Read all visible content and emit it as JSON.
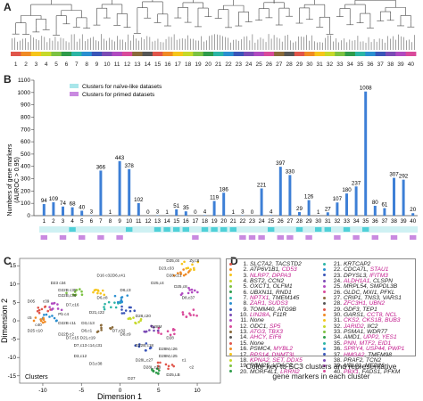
{
  "panels": {
    "a": "A",
    "b": "B",
    "c": "C",
    "d": "D"
  },
  "colors": {
    "bar": "#3d7fd6",
    "naive": "#a8e6ea",
    "primed": "#c98ae0",
    "pink_gene": "#c2188c"
  },
  "cluster_palette": [
    "#e0554a",
    "#f08a24",
    "#f6c51a",
    "#c6d92a",
    "#7cc242",
    "#2e9b4a",
    "#2bb5a5",
    "#2a8fd0",
    "#3a55b8",
    "#7b4bb5",
    "#b04ac0",
    "#d94a9a",
    "#8a6a3a",
    "#555555"
  ],
  "dendrogram": {
    "numbers": [
      "1",
      "2",
      "3",
      "4",
      "5",
      "6",
      "7",
      "8",
      "9",
      "10",
      "11",
      "12",
      "13",
      "14",
      "15",
      "16",
      "17",
      "18",
      "19",
      "20",
      "21",
      "22",
      "23",
      "24",
      "25",
      "26",
      "27",
      "28",
      "29",
      "30",
      "31",
      "32",
      "33",
      "34",
      "35",
      "36",
      "37",
      "38",
      "39",
      "40"
    ]
  },
  "legend_b": {
    "naive": "Clusters for naïve-like datasets",
    "primed": "Clusters for primed datasets"
  },
  "chart_data": {
    "type": "bar",
    "ylabel": "Numbers of gene markers (AUROC > 0.95)",
    "ylabel_line1": "Numbers of gene markers",
    "ylabel_line2": "(AUROC > 0.95)",
    "ylim": [
      0,
      1100
    ],
    "yticks": [
      "0",
      "100",
      "200",
      "300",
      "400",
      "500",
      "600",
      "700",
      "800",
      "900",
      "1000",
      "1100"
    ],
    "categories": [
      "1",
      "2",
      "3",
      "4",
      "5",
      "6",
      "7",
      "8",
      "9",
      "10",
      "11",
      "12",
      "13",
      "14",
      "15",
      "16",
      "17",
      "18",
      "19",
      "20",
      "21",
      "22",
      "23",
      "24",
      "25",
      "26",
      "27",
      "28",
      "29",
      "30",
      "31",
      "32",
      "33",
      "34",
      "35",
      "36",
      "37",
      "38",
      "39",
      "40"
    ],
    "values": [
      94,
      109,
      74,
      68,
      40,
      3,
      366,
      1,
      443,
      378,
      102,
      0,
      3,
      1,
      51,
      35,
      0,
      4,
      119,
      186,
      1,
      3,
      0,
      221,
      4,
      397,
      330,
      29,
      126,
      1,
      27,
      107,
      180,
      237,
      1008,
      80,
      61,
      307,
      292,
      20
    ],
    "labels": [
      "94",
      "109",
      "74",
      "68",
      "40",
      "3",
      "366",
      "1",
      "443",
      "378",
      "102",
      "0",
      "3",
      "1",
      "51",
      "35",
      "0",
      "4",
      "119",
      "186",
      "1",
      "3",
      "0",
      "221",
      "4",
      "397",
      "330",
      "29",
      "126",
      "1",
      "27",
      "107",
      "180",
      "237",
      "1008",
      "80",
      "61",
      "307",
      "292",
      "20"
    ],
    "naive_clusters": [
      1,
      2,
      3,
      4,
      5,
      6,
      7,
      8,
      9,
      10,
      11,
      12,
      13,
      14,
      15,
      16,
      17,
      18,
      19,
      20,
      21,
      22,
      23,
      24,
      25,
      26,
      27,
      28,
      29,
      30,
      31,
      32,
      33,
      34,
      35,
      36,
      37,
      38,
      39,
      40
    ],
    "naive_marked": [
      4,
      10,
      13,
      14,
      15,
      16,
      18,
      19,
      20,
      21,
      25,
      28,
      30,
      31,
      33,
      35
    ],
    "primed_marked": [
      1,
      3,
      5,
      7,
      9,
      17,
      22,
      23,
      24,
      26,
      27,
      29,
      32,
      34,
      36,
      38,
      40
    ],
    "grid": false
  },
  "panel_c": {
    "xlabel": "Dimension 1",
    "ylabel": "Dimension 2",
    "legend_title": "Clusters",
    "xticks": [
      "-10",
      "-5",
      "0",
      "5",
      "10"
    ],
    "yticks": [
      "-15",
      "-10",
      "-5",
      "0",
      "5",
      "10",
      "15"
    ],
    "annotations": [
      "D05",
      "c39",
      "Pb c4",
      "c5",
      "c40",
      "D25 c10",
      "D16 c32",
      "D23 c34",
      "D22B c35",
      "D22B,c36",
      "D6,c8",
      "D6,c3",
      "D7,c16",
      "D21,c22",
      "D22B c11",
      "D22B c2",
      "D7,c15 D21,c19",
      "D28,c20",
      "D28M",
      "D28",
      "D6,c41",
      "D3,c13",
      "D8,c1",
      "D7,c13 c14,c31",
      "D3,c12",
      "D7,c32",
      "D8,c9",
      "D22B,c18",
      "D3,c38",
      "D28M,c26",
      "D28M,c25",
      "D28L,c27",
      "D28L,c28",
      "D25,c8",
      "D28,c21",
      "D23,c33",
      "Zy,c8",
      "D25,c6",
      "D25,c4",
      "D8,c37",
      "c1",
      "c2",
      "D25,LB",
      "D27"
    ]
  },
  "panel_d": {
    "col1": [
      {
        "n": "1.",
        "genes": [
          {
            "t": "SLC7A2, TACSTD2",
            "p": false
          }
        ]
      },
      {
        "n": "2.",
        "genes": [
          {
            "t": "ATP6V1B1, ",
            "p": false
          },
          {
            "t": "CD53",
            "p": true
          }
        ]
      },
      {
        "n": "3.",
        "genes": [
          {
            "t": "NLRP7, DPPA3",
            "p": true
          }
        ]
      },
      {
        "n": "4.",
        "genes": [
          {
            "t": "BST2, CCN2",
            "p": false
          }
        ]
      },
      {
        "n": "5.",
        "genes": [
          {
            "t": "OXCT1, OLFM1",
            "p": false
          }
        ]
      },
      {
        "n": "6.",
        "genes": [
          {
            "t": "UBXN11, RND1",
            "p": false
          }
        ]
      },
      {
        "n": "7.",
        "genes": [
          {
            "t": "NPTX1",
            "p": true
          },
          {
            "t": ", TMEM145",
            "p": false
          }
        ]
      },
      {
        "n": "8.",
        "genes": [
          {
            "t": "ZAR1, SUDS3",
            "p": true
          }
        ]
      },
      {
        "n": "9.",
        "genes": [
          {
            "t": "TOMM40, ATG9B",
            "p": false
          }
        ]
      },
      {
        "n": "10.",
        "genes": [
          {
            "t": "LIN28A",
            "p": true
          },
          {
            "t": ", F11R",
            "p": false
          }
        ]
      },
      {
        "n": "11.",
        "genes": [
          {
            "t": "None",
            "p": false
          }
        ]
      },
      {
        "n": "12.",
        "genes": [
          {
            "t": "ODC1, ",
            "p": false
          },
          {
            "t": "SP5",
            "p": true
          }
        ]
      },
      {
        "n": "13.",
        "genes": [
          {
            "t": "ATG3, TBX3",
            "p": true
          }
        ]
      },
      {
        "n": "14.",
        "genes": [
          {
            "t": "AHCY, EIF6",
            "p": true
          }
        ]
      },
      {
        "n": "15.",
        "genes": [
          {
            "t": "None",
            "p": false
          }
        ]
      },
      {
        "n": "16.",
        "genes": [
          {
            "t": "PSMC4, ",
            "p": false
          },
          {
            "t": "MYBL2",
            "p": true
          }
        ]
      },
      {
        "n": "17.",
        "genes": [
          {
            "t": "RPS14, DNMT3L",
            "p": true
          }
        ]
      },
      {
        "n": "18.",
        "genes": [
          {
            "t": "KPNA2, SET, DDX5",
            "p": true
          }
        ]
      },
      {
        "n": "19.",
        "genes": [
          {
            "t": "RBM25, VDAC2",
            "p": false
          }
        ]
      },
      {
        "n": "20.",
        "genes": [
          {
            "t": "MORF4L1, ",
            "p": false
          },
          {
            "t": "LRRN2",
            "p": true
          }
        ]
      }
    ],
    "col2": [
      {
        "n": "21.",
        "genes": [
          {
            "t": "KRTCAP2",
            "p": false
          }
        ]
      },
      {
        "n": "22.",
        "genes": [
          {
            "t": "CDCA7L, ",
            "p": false
          },
          {
            "t": "STAU1",
            "p": true
          }
        ]
      },
      {
        "n": "23.",
        "genes": [
          {
            "t": "DPYSL3, ",
            "p": false
          },
          {
            "t": "IFITM3",
            "p": true
          }
        ]
      },
      {
        "n": "24.",
        "genes": [
          {
            "t": "ALDH1A1",
            "p": true
          },
          {
            "t": ", CLSPN",
            "p": false
          }
        ]
      },
      {
        "n": "25.",
        "genes": [
          {
            "t": "MRPL54, SMPDL3B",
            "p": false
          }
        ]
      },
      {
        "n": "26.",
        "genes": [
          {
            "t": "GLDC, MXI1, PFKL",
            "p": false
          }
        ]
      },
      {
        "n": "27.",
        "genes": [
          {
            "t": "CRIP1, TNS3, VARS1",
            "p": false
          }
        ]
      },
      {
        "n": "28.",
        "genes": [
          {
            "t": "ZFC3H1, UBN2",
            "p": true
          }
        ]
      },
      {
        "n": "29.",
        "genes": [
          {
            "t": "GDF3, TEP1",
            "p": false
          }
        ]
      },
      {
        "n": "30.",
        "genes": [
          {
            "t": "GARS1, ",
            "p": false
          },
          {
            "t": "CCT8, NCL",
            "p": true
          }
        ]
      },
      {
        "n": "31.",
        "genes": [
          {
            "t": "CKS2, CKS1B, BUB3",
            "p": true
          }
        ]
      },
      {
        "n": "32.",
        "genes": [
          {
            "t": "JARID2",
            "p": true
          },
          {
            "t": ", IIC2",
            "p": false
          }
        ]
      },
      {
        "n": "33.",
        "genes": [
          {
            "t": "PSMA1, WDR77",
            "p": false
          }
        ]
      },
      {
        "n": "34.",
        "genes": [
          {
            "t": "AMD1, ",
            "p": false
          },
          {
            "t": "UPP2, YES1",
            "p": true
          }
        ]
      },
      {
        "n": "35.",
        "genes": [
          {
            "t": "PNN, MTF2, EID1",
            "p": true
          }
        ]
      },
      {
        "n": "36.",
        "genes": [
          {
            "t": "SPRY4, USP44, PWP1",
            "p": true
          }
        ]
      },
      {
        "n": "37.",
        "genes": [
          {
            "t": "HMGA2",
            "p": true
          },
          {
            "t": ", TMEM98",
            "p": false
          }
        ]
      },
      {
        "n": "38.",
        "genes": [
          {
            "t": "PRAF2, TCN2",
            "p": false
          }
        ]
      },
      {
        "n": "39.",
        "genes": [
          {
            "t": "UBL01, MED26",
            "p": false
          }
        ]
      },
      {
        "n": "40.",
        "genes": [
          {
            "t": "PBX1",
            "p": true
          },
          {
            "t": ", FADS1, PFKM",
            "p": false
          }
        ]
      }
    ],
    "caption_line1": "Color key to SC3 clusters and representative",
    "caption_line2": "gene markers in each cluster"
  }
}
